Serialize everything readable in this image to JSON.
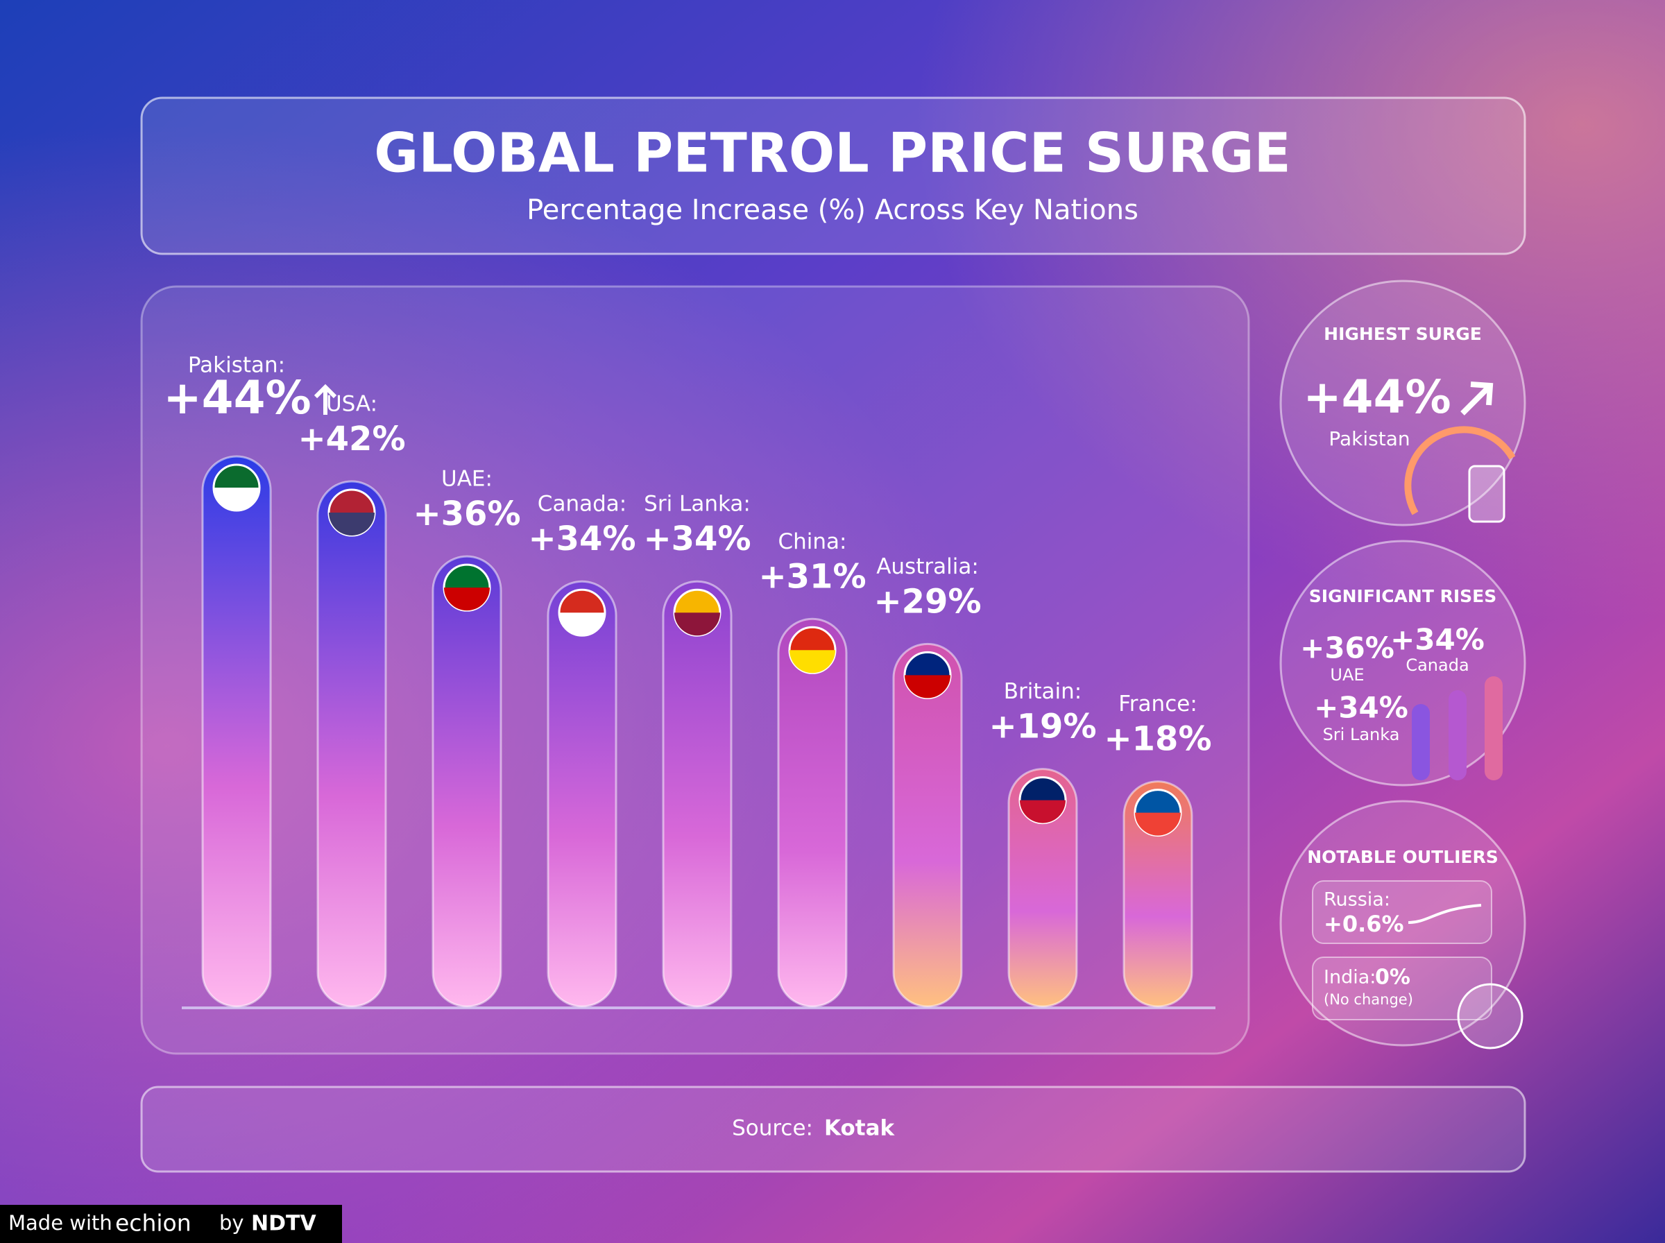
{
  "chart_data": {
    "type": "bar",
    "title": "GLOBAL PETROL PRICE SURGE",
    "subtitle": "Percentage Increase (%) Across Key Nations",
    "categories": [
      "Pakistan:",
      "USA:",
      "UAE:",
      "Canada:",
      "Sri Lanka:",
      "China:",
      "Australia:",
      "Britain:",
      "France:"
    ],
    "values": [
      44,
      42,
      36,
      34,
      34,
      31,
      29,
      19,
      18
    ],
    "value_labels": [
      "+44%",
      "+42%",
      "+36%",
      "+34%",
      "+34%",
      "+31%",
      "+29%",
      "+19%",
      "+18%"
    ],
    "colors": [
      "#2b3be6",
      "#3838e0",
      "#5a3ad8",
      "#7440d6",
      "#8a42d0",
      "#b048c0",
      "#d052ae",
      "#e46490",
      "#f07a5a"
    ]
  },
  "highlights": {
    "highest_surge": {
      "title": "HIGHEST SURGE",
      "value": "+44%",
      "country": "Pakistan"
    },
    "significant_rises": {
      "title": "SIGNIFICANT RISES",
      "items": [
        {
          "value": "+36%",
          "country": "UAE"
        },
        {
          "value": "+34%",
          "country": "Canada"
        },
        {
          "value": "+34%",
          "country": "Sri Lanka"
        }
      ]
    },
    "notable_outliers": {
      "title": "NOTABLE OUTLIERS",
      "items": [
        {
          "label": "Russia:",
          "value": "+0.6%"
        },
        {
          "label": "India:",
          "value": "0%",
          "note": "(No change)"
        }
      ]
    }
  },
  "source": {
    "label": "Source:",
    "name": "Kotak"
  },
  "footer": {
    "made_with": "Made with",
    "brand": "echion",
    "by": "by",
    "publisher": "NDTV"
  }
}
